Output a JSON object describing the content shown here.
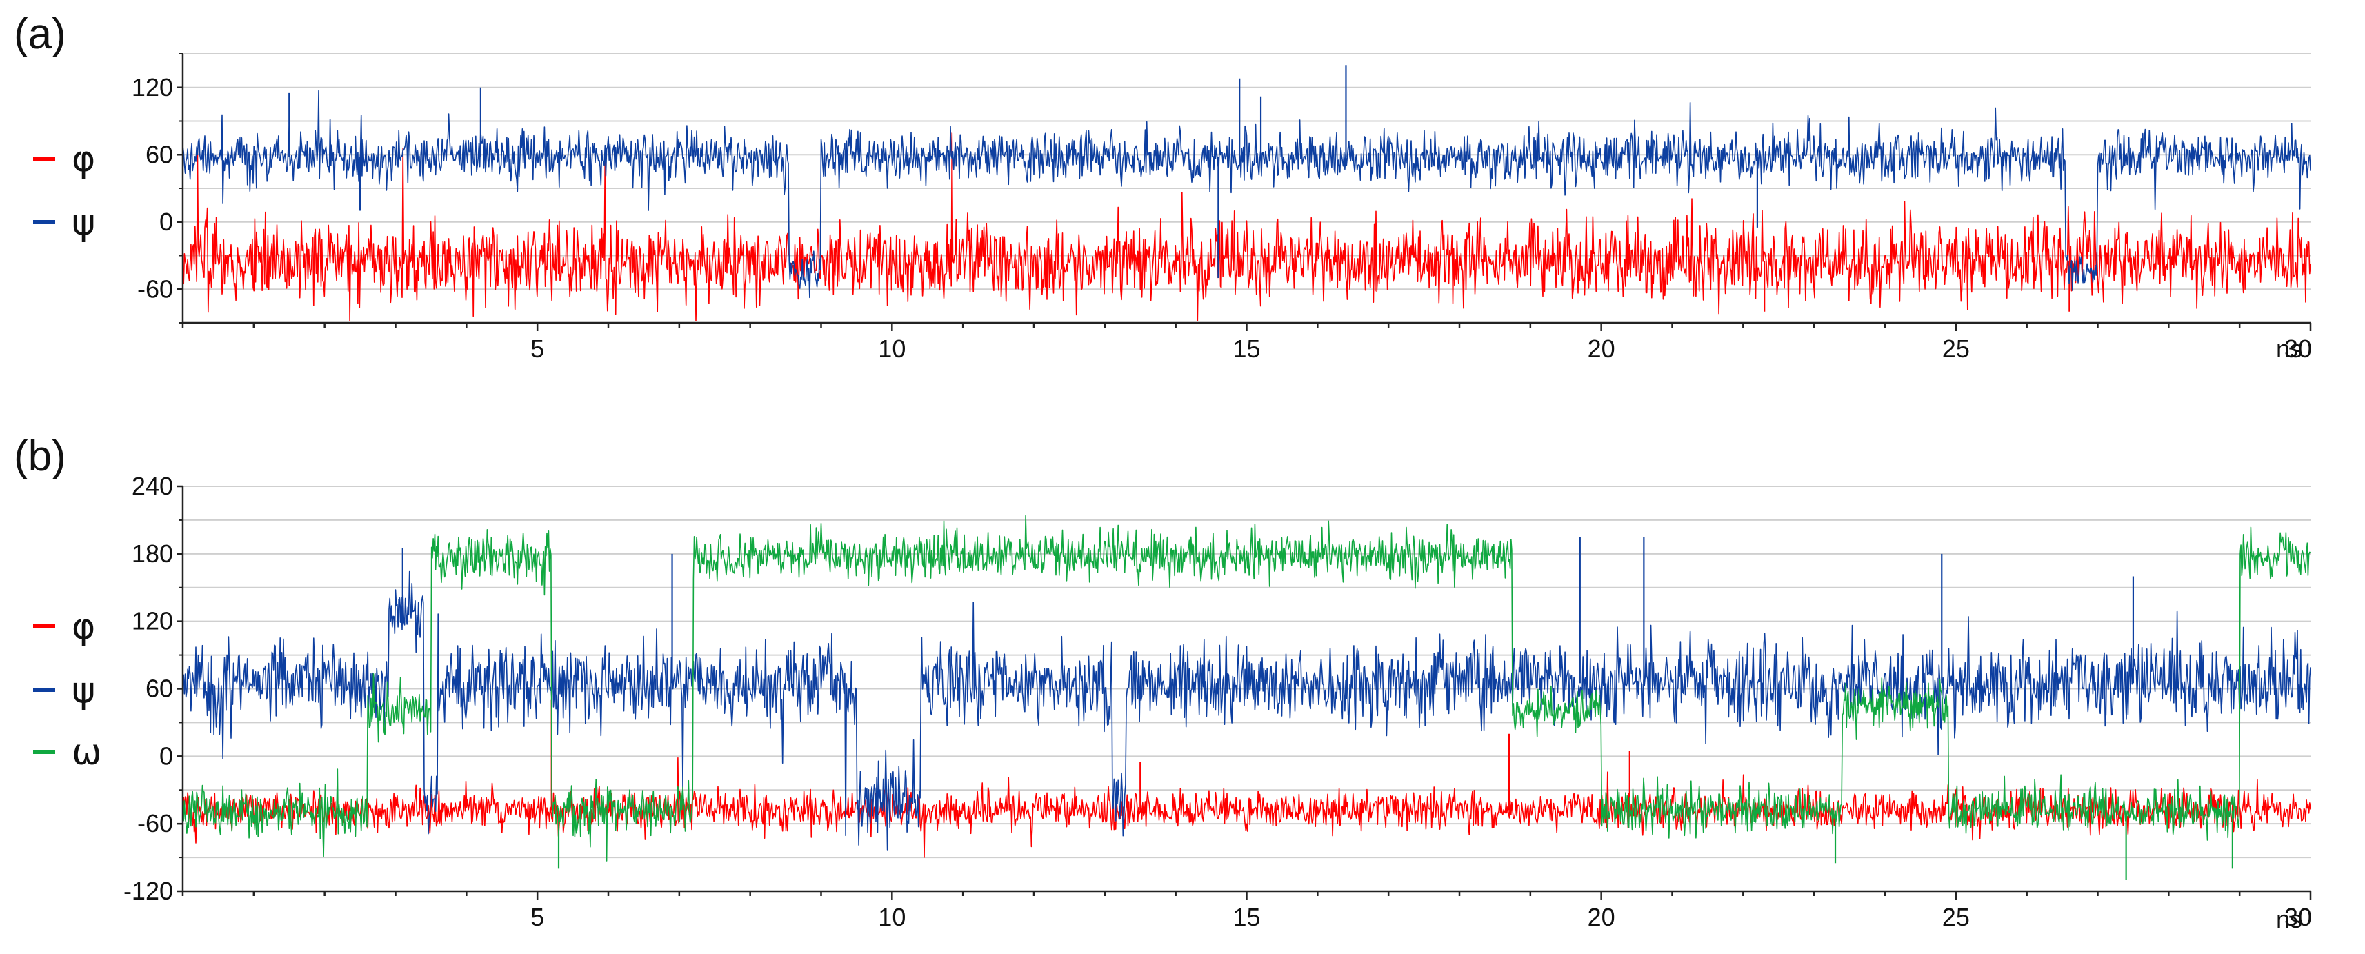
{
  "chart_data": [
    {
      "panel_label": "(a)",
      "type": "line",
      "x_unit": "ns",
      "xlim": [
        0,
        30
      ],
      "x_ticks": [
        5,
        10,
        15,
        20,
        25,
        30
      ],
      "ylim": [
        -90,
        150
      ],
      "y_ticks": [
        -60,
        0,
        60,
        120
      ],
      "grid": true,
      "legend_position": "left",
      "series": [
        {
          "name": "φ",
          "color": "#ff0000",
          "noise": 20,
          "segments": [
            [
              0,
              30,
              -35
            ]
          ],
          "spikes": [
            [
              22.3,
              -80
            ],
            [
              26.6,
              -80
            ]
          ]
        },
        {
          "name": "ψ",
          "color": "#0d3fa0",
          "noise": 13,
          "segments": [
            [
              0,
              8.55,
              58
            ],
            [
              8.55,
              9.0,
              -45
            ],
            [
              9.0,
              26.55,
              58
            ],
            [
              26.55,
              27.0,
              -45
            ],
            [
              27.0,
              30,
              58
            ]
          ],
          "spikes": [
            [
              1.5,
              115
            ],
            [
              2.5,
              10
            ],
            [
              4.2,
              120
            ],
            [
              14.6,
              -50
            ],
            [
              14.9,
              128
            ],
            [
              15.2,
              112
            ],
            [
              16.4,
              140
            ],
            [
              22.2,
              -5
            ]
          ]
        }
      ]
    },
    {
      "panel_label": "(b)",
      "type": "line",
      "x_unit": "ns",
      "xlim": [
        0,
        30
      ],
      "x_ticks": [
        5,
        10,
        15,
        20,
        25,
        30
      ],
      "ylim": [
        -120,
        240
      ],
      "y_ticks": [
        -120,
        -60,
        0,
        60,
        120,
        180,
        240
      ],
      "grid": true,
      "legend_position": "left",
      "series": [
        {
          "name": "φ",
          "color": "#ff0000",
          "noise": 10,
          "segments": [
            [
              0,
              30,
              -48
            ]
          ],
          "spikes": [
            [
              5.2,
              50
            ],
            [
              13.5,
              -5
            ],
            [
              18.7,
              20
            ],
            [
              20.4,
              5
            ]
          ]
        },
        {
          "name": "ψ",
          "color": "#0d3fa0",
          "noise": 20,
          "segments": [
            [
              0,
              2.9,
              65
            ],
            [
              2.9,
              3.4,
              135
            ],
            [
              3.4,
              3.6,
              -40
            ],
            [
              3.6,
              9.5,
              65
            ],
            [
              9.5,
              10.4,
              -40
            ],
            [
              10.4,
              13.1,
              65
            ],
            [
              13.1,
              13.3,
              -40
            ],
            [
              13.3,
              30,
              65
            ]
          ],
          "spikes": [
            [
              3.1,
              185
            ],
            [
              6.9,
              180
            ],
            [
              19.7,
              195
            ],
            [
              20.6,
              195
            ],
            [
              24.8,
              180
            ],
            [
              27.5,
              160
            ]
          ]
        },
        {
          "name": "ω",
          "color": "#10a840",
          "noise": 12,
          "segments": [
            [
              0,
              2.6,
              -48
            ],
            [
              2.6,
              3.5,
              40
            ],
            [
              3.5,
              5.2,
              178
            ],
            [
              5.2,
              7.2,
              -48
            ],
            [
              7.2,
              18.75,
              178
            ],
            [
              18.75,
              20.0,
              40
            ],
            [
              20.0,
              23.4,
              -48
            ],
            [
              23.4,
              24.9,
              45
            ],
            [
              24.9,
              26.0,
              -48
            ],
            [
              26.0,
              29.0,
              -48
            ],
            [
              29.0,
              30,
              178
            ]
          ],
          "spikes": [
            [
              5.3,
              -100
            ],
            [
              23.3,
              -95
            ],
            [
              27.4,
              -110
            ],
            [
              28.9,
              -100
            ]
          ]
        }
      ]
    }
  ]
}
